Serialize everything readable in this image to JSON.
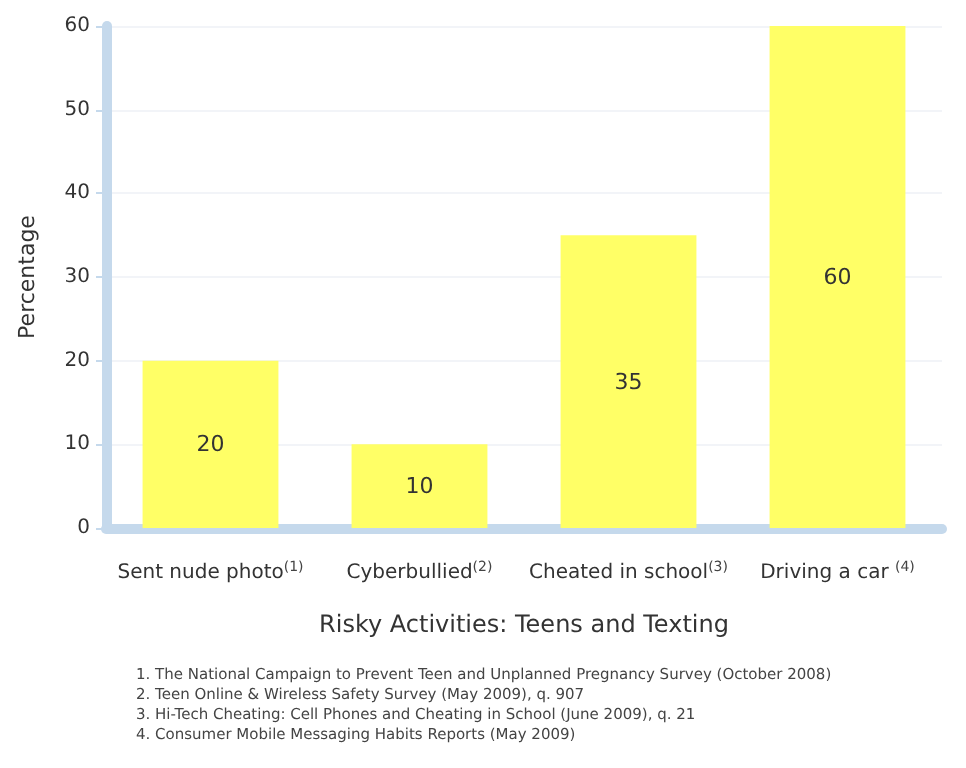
{
  "chart_data": {
    "type": "bar",
    "categories": [
      "Sent nude photo$^{(1)}$",
      "Cyberbullied$^{(2)}$",
      "Cheated in school$^{(3)}$",
      "Driving a car $^{(4)}$"
    ],
    "values": [
      20,
      10,
      35,
      60
    ],
    "color": "#ffff66",
    "xlabel": "Risky Activities: Teens and Texting",
    "ylabel": "Percentage",
    "ylim": [
      0,
      60
    ],
    "yticks": [
      0,
      10,
      20,
      30,
      40,
      50,
      60
    ],
    "grid": "y",
    "data_labels": true,
    "annotations": [
      "1. The National Campaign to Prevent Teen and Unplanned Pregnancy Survey (October 2008)",
      "2. Teen Online & Wireless Safety Survey (May 2009), q. 907",
      "3. Hi-Tech Cheating: Cell Phones and Cheating in School (June 2009), q. 21",
      "4. Consumer Mobile Messaging Habits Reports (May 2009)"
    ]
  }
}
